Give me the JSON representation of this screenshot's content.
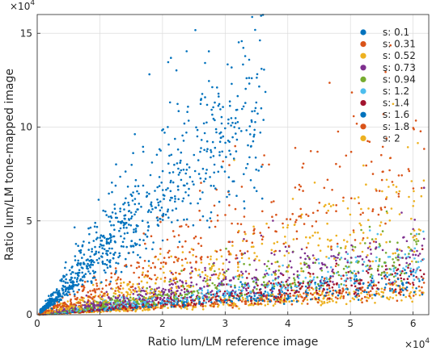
{
  "chart_data": {
    "type": "scatter",
    "title": "",
    "xlabel": "Ratio lum/LM reference image",
    "ylabel": "Ratio lum/LM tone-mapped image",
    "x_multiplier": "×10",
    "x_exponent": "4",
    "y_multiplier": "×10",
    "y_exponent": "4",
    "xlim": [
      0,
      62500
    ],
    "ylim": [
      0,
      160000
    ],
    "x_ticks": [
      0,
      10000,
      20000,
      30000,
      40000,
      50000,
      60000
    ],
    "x_tick_labels": [
      "0",
      "1",
      "2",
      "3",
      "4",
      "5",
      "6"
    ],
    "y_ticks": [
      0,
      50000,
      100000,
      150000
    ],
    "y_tick_labels": [
      "0",
      "5",
      "10",
      "15"
    ],
    "grid": true,
    "legend_position": "top-right",
    "series": [
      {
        "name": "s: 0.1",
        "color": "#0072BD",
        "slope": 3.2,
        "spread": 0.45
      },
      {
        "name": "s: 0.31",
        "color": "#D95319",
        "slope": 1.35,
        "spread": 0.5
      },
      {
        "name": "s: 0.52",
        "color": "#EDB120",
        "slope": 0.9,
        "spread": 0.5
      },
      {
        "name": "s: 0.73",
        "color": "#7E2F8E",
        "slope": 0.62,
        "spread": 0.45
      },
      {
        "name": "s: 0.94",
        "color": "#77AC30",
        "slope": 0.5,
        "spread": 0.45
      },
      {
        "name": "s: 1.2",
        "color": "#4DBEEE",
        "slope": 0.42,
        "spread": 0.45
      },
      {
        "name": "s: 1.4",
        "color": "#A2142F",
        "slope": 0.34,
        "spread": 0.4
      },
      {
        "name": "s: 1.6",
        "color": "#0072BD",
        "slope": 0.29,
        "spread": 0.4
      },
      {
        "name": "s: 1.8",
        "color": "#D95319",
        "slope": 0.24,
        "spread": 0.4
      },
      {
        "name": "s: 2",
        "color": "#EDB120",
        "slope": 0.2,
        "spread": 0.4
      }
    ]
  }
}
